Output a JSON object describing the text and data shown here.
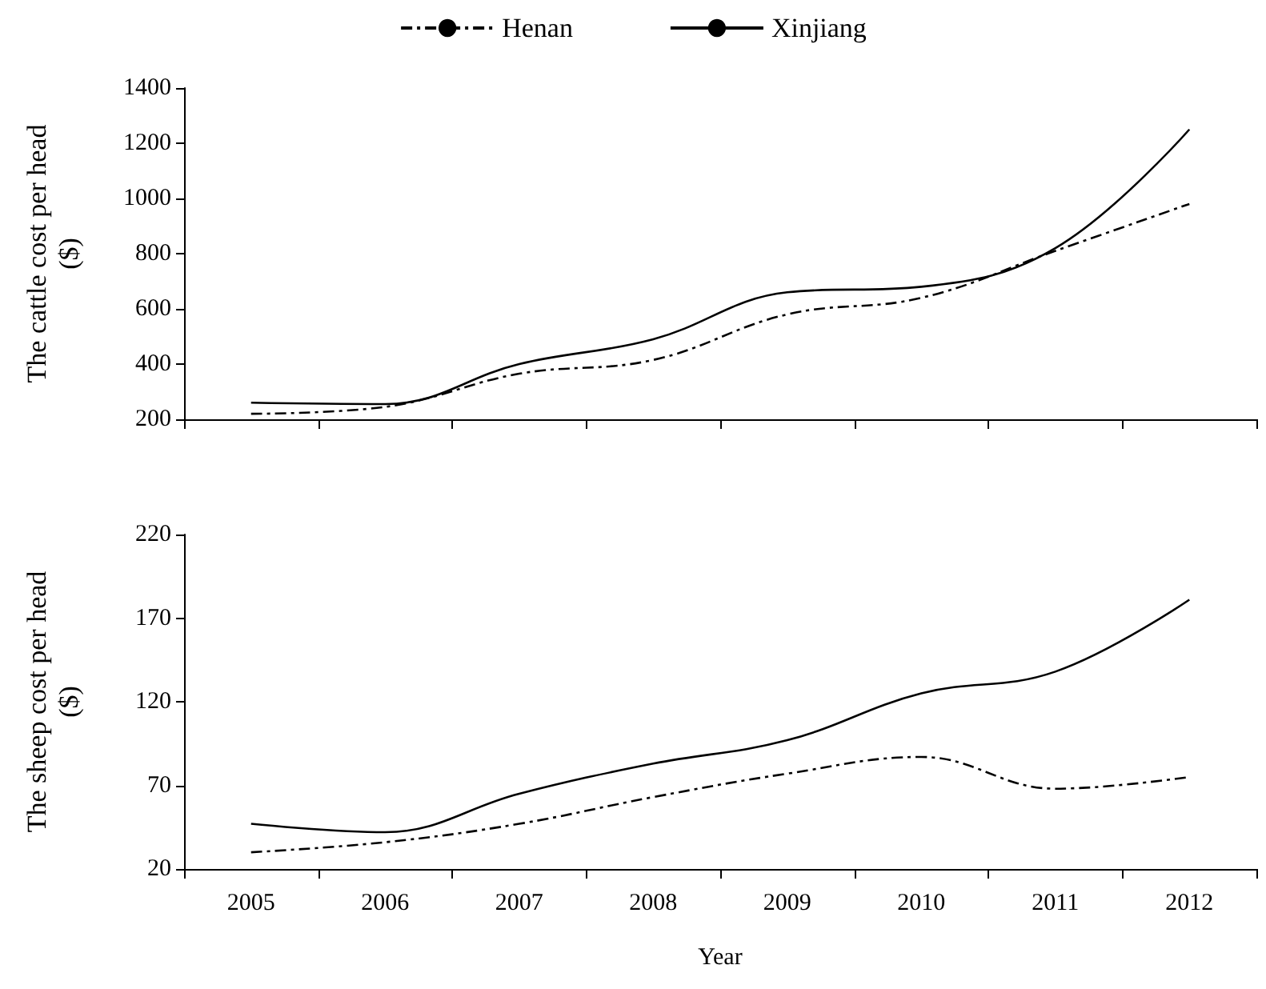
{
  "chart_data": [
    {
      "type": "line",
      "ylabel": "The cattle cost per head\n($)",
      "categories": [
        "2005",
        "2006",
        "2007",
        "2008",
        "2009",
        "2010",
        "2011",
        "2012"
      ],
      "series": [
        {
          "name": "Henan",
          "color": "#000000",
          "line_style": "dashed",
          "values": [
            220,
            245,
            365,
            415,
            580,
            640,
            810,
            980
          ]
        },
        {
          "name": "Xinjiang",
          "color": "#000000",
          "line_style": "solid",
          "values": [
            260,
            255,
            400,
            490,
            660,
            680,
            820,
            1250
          ]
        }
      ],
      "ylim": [
        200,
        1400
      ],
      "yticks": [
        200,
        400,
        600,
        800,
        1000,
        1200,
        1400
      ],
      "tick_labels": "y",
      "legend": "top",
      "grid": false,
      "marker": "none"
    },
    {
      "type": "line",
      "ylabel": "The sheep cost per head\n($)",
      "xlabel": "Year",
      "categories": [
        "2005",
        "2006",
        "2007",
        "2008",
        "2009",
        "2010",
        "2011",
        "2012"
      ],
      "series": [
        {
          "color": "#000000",
          "line_style": "dashed",
          "values": [
            30,
            36,
            47,
            63,
            77,
            87,
            68,
            75
          ]
        },
        {
          "color": "#000000",
          "line_style": "solid",
          "values": [
            47,
            42,
            65,
            83,
            97,
            125,
            138,
            181
          ]
        }
      ],
      "ylim": [
        20,
        220
      ],
      "yticks": [
        20,
        70,
        120,
        170,
        220
      ],
      "grid": false,
      "marker": "none"
    }
  ]
}
